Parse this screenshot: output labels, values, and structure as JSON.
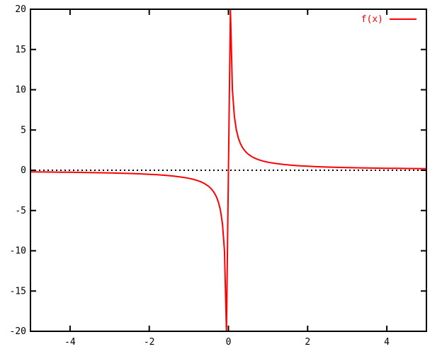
{
  "colors": {
    "background": "#ffffff",
    "border": "#000000",
    "text": "#000000",
    "curve": "#ff0000",
    "zero_line": "#000000"
  },
  "chart_data": {
    "type": "line",
    "title": "",
    "xlabel": "",
    "ylabel": "",
    "xlim": [
      -5,
      5
    ],
    "ylim": [
      -20,
      20
    ],
    "xticks": [
      -4,
      -2,
      0,
      2,
      4
    ],
    "yticks": [
      -20,
      -15,
      -10,
      -5,
      0,
      5,
      10,
      15,
      20
    ],
    "grid": false,
    "zero_line": {
      "y": 0,
      "style": "dotted",
      "color": "#000000"
    },
    "legend": {
      "position": "top-right",
      "entries": [
        {
          "label": "f(x)",
          "color": "#ff0000"
        }
      ]
    },
    "series": [
      {
        "name": "f(x)",
        "formula": "1/x",
        "color": "#ff0000",
        "points": [
          [
            -5,
            -0.2
          ],
          [
            -4.75,
            -0.211
          ],
          [
            -4.5,
            -0.222
          ],
          [
            -4.25,
            -0.235
          ],
          [
            -4,
            -0.25
          ],
          [
            -3.75,
            -0.267
          ],
          [
            -3.5,
            -0.286
          ],
          [
            -3.25,
            -0.308
          ],
          [
            -3,
            -0.333
          ],
          [
            -2.75,
            -0.364
          ],
          [
            -2.5,
            -0.4
          ],
          [
            -2.25,
            -0.444
          ],
          [
            -2,
            -0.5
          ],
          [
            -1.8,
            -0.556
          ],
          [
            -1.6,
            -0.625
          ],
          [
            -1.4,
            -0.714
          ],
          [
            -1.2,
            -0.833
          ],
          [
            -1,
            -1
          ],
          [
            -0.9,
            -1.111
          ],
          [
            -0.8,
            -1.25
          ],
          [
            -0.7,
            -1.429
          ],
          [
            -0.6,
            -1.667
          ],
          [
            -0.5,
            -2
          ],
          [
            -0.45,
            -2.222
          ],
          [
            -0.4,
            -2.5
          ],
          [
            -0.35,
            -2.857
          ],
          [
            -0.3,
            -3.333
          ],
          [
            -0.25,
            -4
          ],
          [
            -0.2,
            -5
          ],
          [
            -0.15,
            -6.667
          ],
          [
            -0.1,
            -10
          ],
          [
            -0.05,
            -20
          ],
          [
            0.05,
            20
          ],
          [
            0.1,
            10
          ],
          [
            0.15,
            6.667
          ],
          [
            0.2,
            5
          ],
          [
            0.25,
            4
          ],
          [
            0.3,
            3.333
          ],
          [
            0.35,
            2.857
          ],
          [
            0.4,
            2.5
          ],
          [
            0.45,
            2.222
          ],
          [
            0.5,
            2
          ],
          [
            0.6,
            1.667
          ],
          [
            0.7,
            1.429
          ],
          [
            0.8,
            1.25
          ],
          [
            0.9,
            1.111
          ],
          [
            1,
            1
          ],
          [
            1.2,
            0.833
          ],
          [
            1.4,
            0.714
          ],
          [
            1.6,
            0.625
          ],
          [
            1.8,
            0.556
          ],
          [
            2,
            0.5
          ],
          [
            2.25,
            0.444
          ],
          [
            2.5,
            0.4
          ],
          [
            2.75,
            0.364
          ],
          [
            3,
            0.333
          ],
          [
            3.25,
            0.308
          ],
          [
            3.5,
            0.286
          ],
          [
            3.75,
            0.267
          ],
          [
            4,
            0.25
          ],
          [
            4.25,
            0.235
          ],
          [
            4.5,
            0.222
          ],
          [
            4.75,
            0.211
          ],
          [
            5,
            0.2
          ]
        ]
      }
    ]
  }
}
